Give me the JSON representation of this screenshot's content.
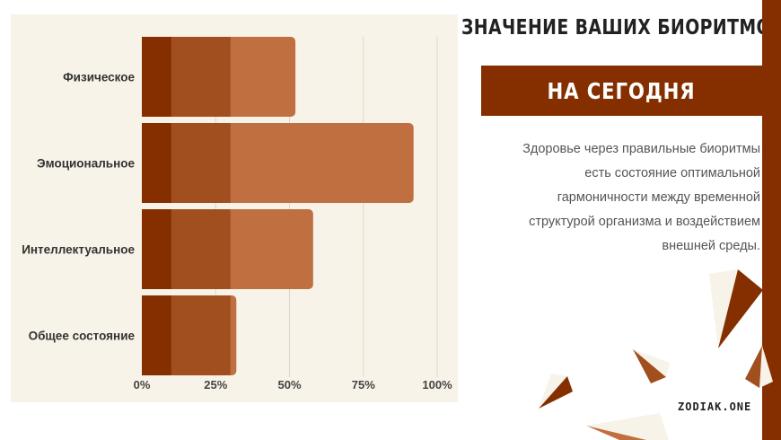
{
  "header": {
    "title": "ЗНАЧЕНИЕ ВАШИХ БИОРИТМОВ",
    "banner": "НА СЕГОДНЯ"
  },
  "description": "Здоровье через правильные биоритмы есть состояние оптимальной гармоничности между временной структурой организма и воздействием внешней среды.",
  "brand": "ZODIAK.ONE",
  "colors": {
    "accent": "#852f00",
    "series": [
      "#852f00",
      "#a24f20",
      "#c07040"
    ],
    "background": "#f8f3e8"
  },
  "chart_data": {
    "type": "bar",
    "orientation": "horizontal",
    "stacked": true,
    "categories": [
      "Физическое",
      "Эмоциональное",
      "Интеллектуальное",
      "Общее состояние"
    ],
    "series": [
      {
        "values": [
          10,
          10,
          10,
          10
        ]
      },
      {
        "values": [
          20,
          20,
          20,
          20
        ]
      },
      {
        "values": [
          22,
          62,
          28,
          2
        ]
      }
    ],
    "xlim": [
      0,
      100
    ],
    "xticks": [
      "0%",
      "25%",
      "50%",
      "75%",
      "100%"
    ],
    "grid": true
  }
}
